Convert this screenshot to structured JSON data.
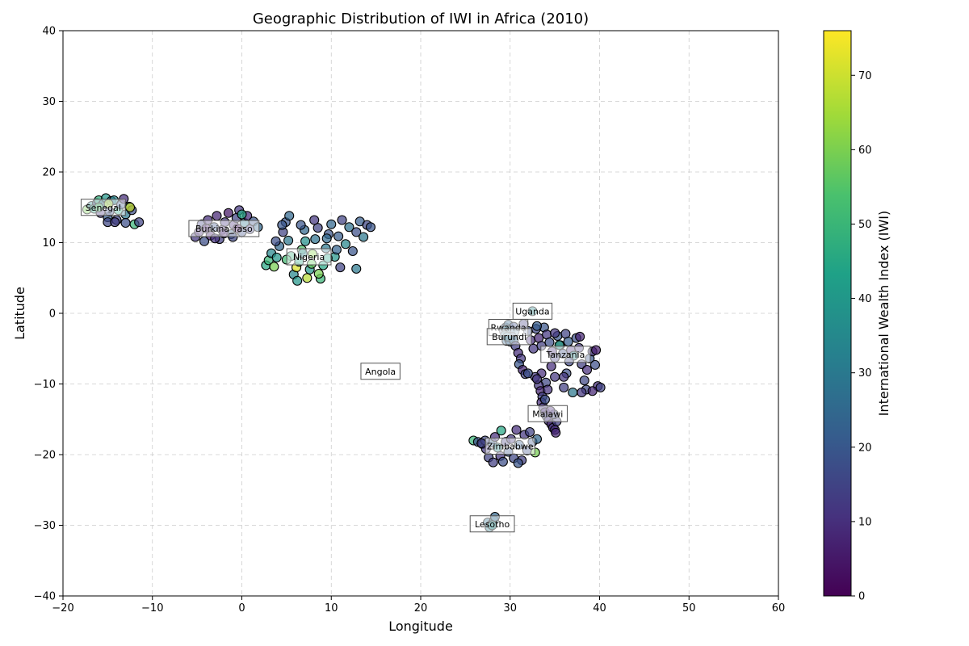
{
  "chart_data": {
    "type": "scatter",
    "title": "Geographic Distribution of IWI in Africa (2010)",
    "xlabel": "Longitude",
    "ylabel": "Latitude",
    "xlim": [
      -20,
      60
    ],
    "ylim": [
      -40,
      40
    ],
    "xticks": [
      -20,
      -10,
      0,
      10,
      20,
      30,
      40,
      50,
      60
    ],
    "yticks": [
      -40,
      -30,
      -20,
      -10,
      0,
      10,
      20,
      30,
      40
    ],
    "xtick_labels": [
      "−20",
      "−10",
      "0",
      "10",
      "20",
      "30",
      "40",
      "50",
      "60"
    ],
    "ytick_labels": [
      "−40",
      "−30",
      "−20",
      "−10",
      "0",
      "10",
      "20",
      "30",
      "40"
    ],
    "grid": true,
    "colorbar": {
      "label": "International Wealth Index (IWI)",
      "min": 0,
      "max": 76,
      "colormap": "viridis",
      "ticks": [
        0,
        10,
        20,
        30,
        40,
        50,
        60,
        70
      ],
      "tick_labels": [
        "0",
        "10",
        "20",
        "30",
        "40",
        "50",
        "60",
        "70"
      ]
    },
    "country_labels": [
      {
        "text": "Senegal",
        "lon": -15.5,
        "lat": 15.0
      },
      {
        "text": "Burkina_faso",
        "lon": -2.0,
        "lat": 12.0
      },
      {
        "text": "Nigeria",
        "lon": 7.5,
        "lat": 8.0
      },
      {
        "text": "Uganda",
        "lon": 32.5,
        "lat": 0.3
      },
      {
        "text": "Rwanda",
        "lon": 29.8,
        "lat": -2.0
      },
      {
        "text": "Burundi",
        "lon": 29.9,
        "lat": -3.3
      },
      {
        "text": "Tanzania",
        "lon": 36.2,
        "lat": -5.8
      },
      {
        "text": "Angola",
        "lon": 15.5,
        "lat": -8.2
      },
      {
        "text": "Malawi",
        "lon": 34.2,
        "lat": -14.2
      },
      {
        "text": "Zimbabwe",
        "lon": 30.0,
        "lat": -18.8
      },
      {
        "text": "Lesotho",
        "lon": 28.0,
        "lat": -29.8
      }
    ],
    "points": [
      [
        -17.3,
        14.7,
        60
      ],
      [
        -16.8,
        15.2,
        35
      ],
      [
        -16.5,
        14.8,
        45
      ],
      [
        -16.2,
        15.6,
        20
      ],
      [
        -16.0,
        16.0,
        48
      ],
      [
        -15.8,
        14.2,
        12
      ],
      [
        -15.5,
        15.5,
        30
      ],
      [
        -15.2,
        16.3,
        40
      ],
      [
        -15.0,
        13.6,
        22
      ],
      [
        -14.8,
        14.4,
        18
      ],
      [
        -14.6,
        15.9,
        25
      ],
      [
        -14.3,
        16.0,
        35
      ],
      [
        -14.0,
        13.2,
        15
      ],
      [
        -13.8,
        14.6,
        45
      ],
      [
        -13.5,
        15.4,
        20
      ],
      [
        -13.2,
        16.2,
        10
      ],
      [
        -13.0,
        14.0,
        30
      ],
      [
        -12.6,
        15.1,
        28
      ],
      [
        -12.3,
        14.6,
        18
      ],
      [
        -12.0,
        12.6,
        50
      ],
      [
        -11.5,
        12.9,
        15
      ],
      [
        -15.0,
        12.9,
        16
      ],
      [
        -14.2,
        12.9,
        14
      ],
      [
        -13.0,
        12.8,
        18
      ],
      [
        -12.5,
        15.0,
        70
      ],
      [
        -16.0,
        15.0,
        55
      ],
      [
        -14.9,
        15.5,
        66
      ],
      [
        -5.2,
        10.8,
        12
      ],
      [
        -4.8,
        11.5,
        8
      ],
      [
        -4.5,
        12.6,
        15
      ],
      [
        -4.2,
        10.2,
        18
      ],
      [
        -3.8,
        13.2,
        10
      ],
      [
        -3.5,
        11.0,
        6
      ],
      [
        -3.1,
        12.2,
        20
      ],
      [
        -2.8,
        13.8,
        8
      ],
      [
        -2.5,
        10.5,
        14
      ],
      [
        -2.2,
        11.8,
        9
      ],
      [
        -1.9,
        12.9,
        12
      ],
      [
        -1.5,
        14.2,
        5
      ],
      [
        -1.2,
        11.2,
        22
      ],
      [
        -0.9,
        12.5,
        10
      ],
      [
        -0.6,
        13.5,
        15
      ],
      [
        -0.3,
        14.6,
        12
      ],
      [
        0.0,
        11.5,
        18
      ],
      [
        0.3,
        12.8,
        30
      ],
      [
        0.6,
        13.8,
        9
      ],
      [
        0.9,
        11.9,
        14
      ],
      [
        1.3,
        13.0,
        20
      ],
      [
        1.8,
        12.2,
        25
      ],
      [
        -4.0,
        12.0,
        6
      ],
      [
        -3.0,
        10.6,
        11
      ],
      [
        -2.0,
        11.3,
        8
      ],
      [
        -1.0,
        10.8,
        16
      ],
      [
        0.0,
        14.0,
        45
      ],
      [
        -0.5,
        12.0,
        3
      ],
      [
        2.7,
        6.8,
        45
      ],
      [
        3.0,
        7.5,
        50
      ],
      [
        3.3,
        8.5,
        35
      ],
      [
        3.6,
        6.6,
        60
      ],
      [
        3.9,
        7.9,
        40
      ],
      [
        4.2,
        9.5,
        25
      ],
      [
        4.6,
        11.5,
        15
      ],
      [
        4.9,
        12.9,
        20
      ],
      [
        5.2,
        10.3,
        30
      ],
      [
        5.5,
        8.1,
        48
      ],
      [
        5.8,
        5.5,
        35
      ],
      [
        6.1,
        6.5,
        72
      ],
      [
        6.4,
        7.3,
        45
      ],
      [
        6.7,
        9.0,
        55
      ],
      [
        7.0,
        11.8,
        25
      ],
      [
        7.3,
        5.0,
        68
      ],
      [
        7.6,
        6.2,
        40
      ],
      [
        7.9,
        8.4,
        62
      ],
      [
        8.2,
        10.5,
        28
      ],
      [
        8.5,
        12.1,
        15
      ],
      [
        8.8,
        4.9,
        50
      ],
      [
        9.1,
        6.8,
        45
      ],
      [
        9.4,
        9.2,
        30
      ],
      [
        9.7,
        11.2,
        20
      ],
      [
        10.0,
        12.6,
        25
      ],
      [
        10.4,
        8.0,
        40
      ],
      [
        10.8,
        10.9,
        22
      ],
      [
        11.2,
        13.2,
        15
      ],
      [
        11.6,
        9.8,
        35
      ],
      [
        12.0,
        12.2,
        28
      ],
      [
        12.4,
        8.8,
        20
      ],
      [
        12.8,
        11.5,
        18
      ],
      [
        13.2,
        13.0,
        22
      ],
      [
        13.6,
        10.8,
        30
      ],
      [
        14.0,
        12.5,
        16
      ],
      [
        14.4,
        12.2,
        20
      ],
      [
        4.5,
        12.5,
        20
      ],
      [
        5.3,
        13.8,
        25
      ],
      [
        6.6,
        12.5,
        20
      ],
      [
        8.1,
        13.2,
        12
      ],
      [
        9.5,
        10.6,
        26
      ],
      [
        11.0,
        6.5,
        15
      ],
      [
        6.2,
        4.6,
        40
      ],
      [
        5.0,
        7.6,
        52
      ],
      [
        7.8,
        7.0,
        58
      ],
      [
        6.8,
        8.5,
        34
      ],
      [
        9.6,
        7.8,
        44
      ],
      [
        12.8,
        6.3,
        30
      ],
      [
        10.6,
        9.0,
        24
      ],
      [
        3.8,
        10.2,
        18
      ],
      [
        8.6,
        5.6,
        60
      ],
      [
        7.1,
        10.2,
        38
      ],
      [
        32.5,
        0.3,
        35
      ],
      [
        29.5,
        -2.0,
        22
      ],
      [
        29.8,
        -1.6,
        25
      ],
      [
        30.1,
        -2.3,
        20
      ],
      [
        30.4,
        -1.9,
        18
      ],
      [
        29.3,
        -2.5,
        24
      ],
      [
        30.0,
        -2.7,
        22
      ],
      [
        29.6,
        -2.3,
        30
      ],
      [
        30.5,
        -2.6,
        26
      ],
      [
        29.4,
        -3.1,
        28
      ],
      [
        29.8,
        -3.6,
        22
      ],
      [
        30.2,
        -3.3,
        20
      ],
      [
        29.6,
        -3.9,
        25
      ],
      [
        30.0,
        -4.0,
        24
      ],
      [
        30.4,
        -3.8,
        26
      ],
      [
        29.7,
        -3.3,
        30
      ],
      [
        30.6,
        -4.6,
        14
      ],
      [
        30.9,
        -5.6,
        10
      ],
      [
        31.2,
        -6.4,
        12
      ],
      [
        31.0,
        -7.2,
        20
      ],
      [
        31.4,
        -8.0,
        8
      ],
      [
        31.7,
        -8.6,
        15
      ],
      [
        32.0,
        -2.5,
        18
      ],
      [
        32.3,
        -3.8,
        10
      ],
      [
        32.6,
        -5.0,
        12
      ],
      [
        32.9,
        -2.2,
        16
      ],
      [
        33.2,
        -3.5,
        8
      ],
      [
        33.5,
        -4.6,
        14
      ],
      [
        33.8,
        -2.0,
        20
      ],
      [
        34.1,
        -3.0,
        12
      ],
      [
        34.4,
        -4.1,
        18
      ],
      [
        34.7,
        -5.4,
        10
      ],
      [
        35.0,
        -6.3,
        14
      ],
      [
        35.3,
        -3.2,
        20
      ],
      [
        35.6,
        -4.5,
        12
      ],
      [
        35.9,
        -5.7,
        18
      ],
      [
        36.2,
        -2.9,
        15
      ],
      [
        36.5,
        -4.0,
        22
      ],
      [
        36.8,
        -5.2,
        10
      ],
      [
        37.1,
        -6.0,
        35
      ],
      [
        37.4,
        -3.5,
        18
      ],
      [
        37.7,
        -4.9,
        12
      ],
      [
        38.0,
        -7.2,
        14
      ],
      [
        38.3,
        -9.5,
        16
      ],
      [
        38.6,
        -8.0,
        10
      ],
      [
        38.9,
        -6.4,
        20
      ],
      [
        39.2,
        -5.4,
        12
      ],
      [
        39.5,
        -7.3,
        18
      ],
      [
        39.8,
        -10.3,
        10
      ],
      [
        40.1,
        -10.5,
        15
      ],
      [
        38.5,
        -10.8,
        16
      ],
      [
        37.0,
        -11.2,
        30
      ],
      [
        36.0,
        -10.5,
        14
      ],
      [
        35.0,
        -9.0,
        12
      ],
      [
        34.0,
        -9.8,
        16
      ],
      [
        33.5,
        -8.5,
        10
      ],
      [
        32.8,
        -9.0,
        12
      ],
      [
        32.0,
        -8.5,
        18
      ],
      [
        34.6,
        -7.5,
        10
      ],
      [
        36.3,
        -8.5,
        18
      ],
      [
        35.5,
        -4.5,
        45
      ],
      [
        36.0,
        -9.0,
        12
      ],
      [
        39.6,
        -5.2,
        6
      ],
      [
        39.2,
        -11.0,
        8
      ],
      [
        38.0,
        -11.2,
        12
      ],
      [
        37.8,
        -3.3,
        8
      ],
      [
        33.0,
        -1.8,
        22
      ],
      [
        31.5,
        -1.5,
        14
      ],
      [
        35.0,
        -2.8,
        12
      ],
      [
        36.6,
        -6.8,
        16
      ],
      [
        33.2,
        -10.2,
        12
      ],
      [
        33.4,
        -11.0,
        8
      ],
      [
        33.6,
        -11.8,
        14
      ],
      [
        33.5,
        -12.6,
        10
      ],
      [
        33.7,
        -13.3,
        12
      ],
      [
        33.9,
        -14.0,
        9
      ],
      [
        34.1,
        -14.6,
        15
      ],
      [
        34.3,
        -15.2,
        11
      ],
      [
        34.6,
        -15.7,
        8
      ],
      [
        34.8,
        -16.2,
        12
      ],
      [
        35.0,
        -16.5,
        10
      ],
      [
        35.2,
        -15.3,
        14
      ],
      [
        34.9,
        -14.3,
        16
      ],
      [
        34.5,
        -13.8,
        9
      ],
      [
        33.9,
        -12.2,
        18
      ],
      [
        35.1,
        -16.9,
        8
      ],
      [
        34.2,
        -10.8,
        11
      ],
      [
        33.0,
        -9.3,
        12
      ],
      [
        25.9,
        -18.0,
        50
      ],
      [
        26.4,
        -18.2,
        18
      ],
      [
        26.9,
        -18.5,
        20
      ],
      [
        27.3,
        -19.2,
        12
      ],
      [
        27.6,
        -20.4,
        15
      ],
      [
        28.0,
        -18.3,
        22
      ],
      [
        28.3,
        -17.5,
        10
      ],
      [
        28.6,
        -19.0,
        35
      ],
      [
        28.9,
        -20.2,
        12
      ],
      [
        29.2,
        -21.0,
        18
      ],
      [
        29.5,
        -18.2,
        14
      ],
      [
        29.8,
        -19.6,
        20
      ],
      [
        30.1,
        -17.8,
        12
      ],
      [
        30.4,
        -20.5,
        16
      ],
      [
        30.7,
        -16.5,
        10
      ],
      [
        31.0,
        -18.6,
        22
      ],
      [
        31.3,
        -20.8,
        14
      ],
      [
        31.6,
        -17.2,
        12
      ],
      [
        31.9,
        -19.4,
        18
      ],
      [
        32.2,
        -16.8,
        15
      ],
      [
        32.5,
        -18.2,
        20
      ],
      [
        32.8,
        -19.7,
        60
      ],
      [
        33.0,
        -17.8,
        25
      ],
      [
        28.1,
        -21.1,
        14
      ],
      [
        30.9,
        -21.2,
        20
      ],
      [
        29.0,
        -16.6,
        45
      ],
      [
        27.2,
        -18.0,
        16
      ],
      [
        26.8,
        -18.4,
        14
      ],
      [
        27.5,
        -29.6,
        28
      ],
      [
        27.9,
        -29.9,
        35
      ],
      [
        28.2,
        -29.3,
        30
      ],
      [
        28.3,
        -28.8,
        25
      ],
      [
        27.7,
        -30.3,
        32
      ],
      [
        28.0,
        -30.0,
        38
      ]
    ]
  }
}
